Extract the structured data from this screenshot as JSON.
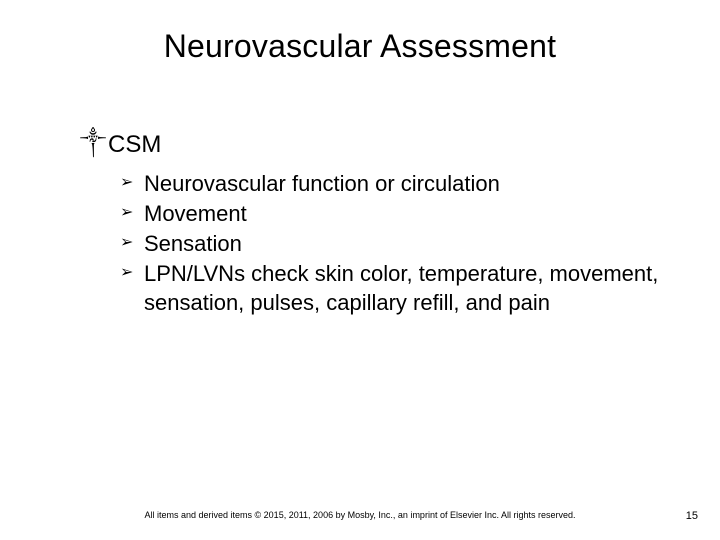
{
  "slide": {
    "title": "Neurovascular Assessment",
    "title_fontsize": 32,
    "background_color": "#ffffff",
    "text_color": "#000000",
    "font_family": "Arial"
  },
  "content": {
    "level1_bullet_glyph": "༒",
    "level2_bullet_glyph": "➢",
    "items": [
      {
        "text": "CSM",
        "children": [
          {
            "text": "Neurovascular function or circulation"
          },
          {
            "text": "Movement"
          },
          {
            "text": "Sensation"
          },
          {
            "text": "LPN/LVNs check skin color, temperature, movement, sensation, pulses, capillary refill, and pain"
          }
        ]
      }
    ],
    "level1_fontsize": 24,
    "level2_fontsize": 22
  },
  "footer": {
    "copyright": "All items and derived items © 2015, 2011, 2006 by Mosby, Inc., an imprint of Elsevier Inc. All rights reserved.",
    "fontsize": 9
  },
  "page_number": "15"
}
